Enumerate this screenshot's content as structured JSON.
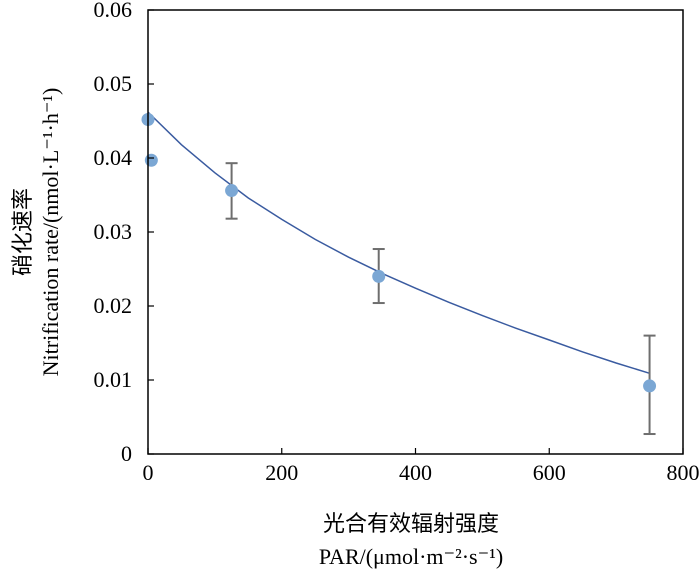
{
  "chart_data": {
    "type": "scatter",
    "xlabel_line1": "光合有效辐射强度",
    "xlabel_line2": "PAR/(μmol·m⁻²·s⁻¹)",
    "ylabel_line1": "硝化速率",
    "ylabel_line2": "Nitrification rate/(nmol·L⁻¹·h⁻¹)",
    "xlim": [
      0,
      800
    ],
    "ylim": [
      0,
      0.06
    ],
    "x_ticks": [
      0,
      200,
      400,
      600,
      800
    ],
    "x_tick_labels": [
      "0",
      "200",
      "400",
      "600",
      "800"
    ],
    "y_ticks": [
      0,
      0.01,
      0.02,
      0.03,
      0.04,
      0.05,
      0.06
    ],
    "y_tick_labels": [
      "0",
      "0.01",
      "0.02",
      "0.03",
      "0.04",
      "0.05",
      "0.06"
    ],
    "grid": false,
    "points": [
      {
        "x": 0,
        "y": 0.0452
      },
      {
        "x": 5,
        "y": 0.0397
      },
      {
        "x": 125,
        "y": 0.0356,
        "err_low": 0.0318,
        "err_high": 0.0393
      },
      {
        "x": 345,
        "y": 0.024,
        "err_low": 0.0204,
        "err_high": 0.0277
      },
      {
        "x": 750,
        "y": 0.0092,
        "err_low": 0.0027,
        "err_high": 0.016
      }
    ],
    "fit_curve": {
      "x": [
        0,
        50,
        100,
        150,
        200,
        250,
        300,
        350,
        400,
        450,
        500,
        550,
        600,
        650,
        700,
        750
      ],
      "y": [
        0.0462,
        0.0418,
        0.038,
        0.0346,
        0.0317,
        0.029,
        0.0266,
        0.0244,
        0.0224,
        0.0205,
        0.0187,
        0.017,
        0.0154,
        0.0138,
        0.0123,
        0.0109
      ]
    },
    "colors": {
      "marker": "#7BA7D4",
      "curve": "#3A5BA0",
      "errorbar": "#6E6E6E",
      "axis": "#000000"
    }
  }
}
